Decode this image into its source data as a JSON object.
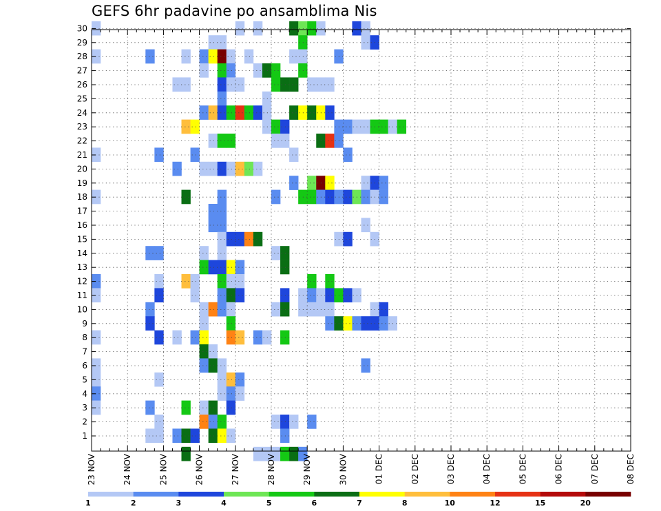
{
  "chart_data": {
    "type": "heatmap",
    "title": "GEFS 6hr padavine po ansamblima Nis",
    "x_tick_labels": [
      "23 NOV",
      "24 NOV",
      "25 NOV",
      "26 NOV",
      "27 NOV",
      "28 NOV",
      "29 NOV",
      "30 NOV",
      "01 DEC",
      "02 DEC",
      "03 DEC",
      "04 DEC",
      "05 DEC",
      "06 DEC",
      "07 DEC",
      "08 DEC"
    ],
    "y_tick_labels": [
      "1",
      "2",
      "3",
      "4",
      "5",
      "6",
      "7",
      "8",
      "9",
      "10",
      "11",
      "12",
      "13",
      "14",
      "15",
      "16",
      "17",
      "18",
      "19",
      "20",
      "21",
      "22",
      "23",
      "24",
      "25",
      "26",
      "27",
      "28",
      "29",
      "30"
    ],
    "steps_per_day": 4,
    "grid": true,
    "legend_position": "bottom",
    "colorbar": {
      "labels": [
        "1",
        "2",
        "3",
        "4",
        "5",
        "6",
        "7",
        "8",
        "10",
        "12",
        "15",
        "20"
      ],
      "colors": [
        "#b4c8f5",
        "#5a8cf0",
        "#1e46dc",
        "#6ee655",
        "#14c814",
        "#0a6e14",
        "#ffff00",
        "#ffbe3c",
        "#ff8214",
        "#e63214",
        "#b40a0a",
        "#780000"
      ]
    },
    "cells": [
      [
        30,
        0,
        0
      ],
      [
        30,
        16,
        0
      ],
      [
        30,
        18,
        0
      ],
      [
        30,
        22,
        5
      ],
      [
        30,
        23,
        3
      ],
      [
        30,
        24,
        4
      ],
      [
        30,
        25,
        0
      ],
      [
        30,
        29,
        2
      ],
      [
        30,
        30,
        0
      ],
      [
        29,
        13,
        0
      ],
      [
        29,
        14,
        0
      ],
      [
        29,
        23,
        4
      ],
      [
        29,
        30,
        0
      ],
      [
        29,
        31,
        2
      ],
      [
        28,
        0,
        0
      ],
      [
        28,
        6,
        1
      ],
      [
        28,
        10,
        0
      ],
      [
        28,
        12,
        1
      ],
      [
        28,
        13,
        6
      ],
      [
        28,
        14,
        11
      ],
      [
        28,
        15,
        0
      ],
      [
        28,
        17,
        0
      ],
      [
        28,
        22,
        0
      ],
      [
        28,
        23,
        0
      ],
      [
        28,
        27,
        1
      ],
      [
        27,
        12,
        0
      ],
      [
        27,
        14,
        4
      ],
      [
        27,
        15,
        1
      ],
      [
        27,
        18,
        0
      ],
      [
        27,
        19,
        5
      ],
      [
        27,
        20,
        4
      ],
      [
        27,
        23,
        4
      ],
      [
        26,
        9,
        0
      ],
      [
        26,
        10,
        0
      ],
      [
        26,
        14,
        2
      ],
      [
        26,
        15,
        0
      ],
      [
        26,
        16,
        0
      ],
      [
        26,
        20,
        4
      ],
      [
        26,
        21,
        5
      ],
      [
        26,
        22,
        5
      ],
      [
        26,
        24,
        0
      ],
      [
        26,
        25,
        0
      ],
      [
        26,
        26,
        0
      ],
      [
        25,
        14,
        1
      ],
      [
        25,
        19,
        0
      ],
      [
        24,
        12,
        1
      ],
      [
        24,
        13,
        7
      ],
      [
        24,
        14,
        2
      ],
      [
        24,
        15,
        4
      ],
      [
        24,
        16,
        9
      ],
      [
        24,
        17,
        4
      ],
      [
        24,
        18,
        2
      ],
      [
        24,
        19,
        0
      ],
      [
        24,
        22,
        5
      ],
      [
        24,
        23,
        6
      ],
      [
        24,
        24,
        5
      ],
      [
        24,
        25,
        6
      ],
      [
        24,
        26,
        2
      ],
      [
        23,
        10,
        7
      ],
      [
        23,
        11,
        6
      ],
      [
        23,
        19,
        0
      ],
      [
        23,
        20,
        4
      ],
      [
        23,
        21,
        2
      ],
      [
        23,
        27,
        1
      ],
      [
        23,
        28,
        1
      ],
      [
        23,
        29,
        0
      ],
      [
        23,
        30,
        0
      ],
      [
        23,
        31,
        4
      ],
      [
        23,
        32,
        4
      ],
      [
        23,
        33,
        0
      ],
      [
        23,
        34,
        4
      ],
      [
        22,
        13,
        0
      ],
      [
        22,
        14,
        4
      ],
      [
        22,
        15,
        4
      ],
      [
        22,
        20,
        0
      ],
      [
        22,
        21,
        0
      ],
      [
        22,
        25,
        5
      ],
      [
        22,
        26,
        9
      ],
      [
        22,
        27,
        1
      ],
      [
        21,
        0,
        0
      ],
      [
        21,
        7,
        1
      ],
      [
        21,
        11,
        1
      ],
      [
        21,
        22,
        0
      ],
      [
        21,
        28,
        1
      ],
      [
        20,
        9,
        1
      ],
      [
        20,
        12,
        0
      ],
      [
        20,
        13,
        0
      ],
      [
        20,
        14,
        2
      ],
      [
        20,
        15,
        0
      ],
      [
        20,
        16,
        7
      ],
      [
        20,
        17,
        3
      ],
      [
        20,
        18,
        0
      ],
      [
        19,
        22,
        1
      ],
      [
        19,
        24,
        3
      ],
      [
        19,
        25,
        11
      ],
      [
        19,
        26,
        6
      ],
      [
        19,
        30,
        0
      ],
      [
        19,
        31,
        2
      ],
      [
        19,
        32,
        1
      ],
      [
        18,
        0,
        0
      ],
      [
        18,
        10,
        5
      ],
      [
        18,
        14,
        1
      ],
      [
        18,
        20,
        1
      ],
      [
        18,
        23,
        4
      ],
      [
        18,
        24,
        4
      ],
      [
        18,
        25,
        1
      ],
      [
        18,
        26,
        2
      ],
      [
        18,
        27,
        1
      ],
      [
        18,
        28,
        2
      ],
      [
        18,
        29,
        3
      ],
      [
        18,
        30,
        1
      ],
      [
        18,
        31,
        0
      ],
      [
        18,
        32,
        1
      ],
      [
        17,
        13,
        1
      ],
      [
        17,
        14,
        1
      ],
      [
        16,
        13,
        1
      ],
      [
        16,
        14,
        1
      ],
      [
        16,
        30,
        0
      ],
      [
        15,
        14,
        0
      ],
      [
        15,
        15,
        2
      ],
      [
        15,
        16,
        2
      ],
      [
        15,
        17,
        8
      ],
      [
        15,
        18,
        5
      ],
      [
        15,
        27,
        0
      ],
      [
        15,
        28,
        2
      ],
      [
        15,
        31,
        0
      ],
      [
        14,
        6,
        1
      ],
      [
        14,
        7,
        1
      ],
      [
        14,
        12,
        0
      ],
      [
        14,
        14,
        0
      ],
      [
        14,
        20,
        0
      ],
      [
        14,
        21,
        5
      ],
      [
        13,
        12,
        4
      ],
      [
        13,
        13,
        2
      ],
      [
        13,
        14,
        2
      ],
      [
        13,
        15,
        6
      ],
      [
        13,
        16,
        1
      ],
      [
        13,
        21,
        5
      ],
      [
        12,
        0,
        1
      ],
      [
        12,
        7,
        0
      ],
      [
        12,
        10,
        7
      ],
      [
        12,
        11,
        0
      ],
      [
        12,
        14,
        4
      ],
      [
        12,
        15,
        0
      ],
      [
        12,
        16,
        0
      ],
      [
        12,
        24,
        4
      ],
      [
        12,
        26,
        4
      ],
      [
        11,
        0,
        0
      ],
      [
        11,
        7,
        2
      ],
      [
        11,
        11,
        0
      ],
      [
        11,
        14,
        1
      ],
      [
        11,
        15,
        5
      ],
      [
        11,
        16,
        2
      ],
      [
        11,
        21,
        2
      ],
      [
        11,
        23,
        0
      ],
      [
        11,
        24,
        1
      ],
      [
        11,
        25,
        0
      ],
      [
        11,
        26,
        2
      ],
      [
        11,
        27,
        4
      ],
      [
        11,
        28,
        2
      ],
      [
        11,
        29,
        0
      ],
      [
        10,
        6,
        1
      ],
      [
        10,
        12,
        0
      ],
      [
        10,
        13,
        8
      ],
      [
        10,
        14,
        1
      ],
      [
        10,
        15,
        0
      ],
      [
        10,
        20,
        0
      ],
      [
        10,
        21,
        5
      ],
      [
        10,
        23,
        0
      ],
      [
        10,
        24,
        0
      ],
      [
        10,
        25,
        0
      ],
      [
        10,
        26,
        0
      ],
      [
        10,
        31,
        0
      ],
      [
        10,
        32,
        2
      ],
      [
        9,
        6,
        2
      ],
      [
        9,
        12,
        0
      ],
      [
        9,
        15,
        4
      ],
      [
        9,
        26,
        1
      ],
      [
        9,
        27,
        5
      ],
      [
        9,
        28,
        6
      ],
      [
        9,
        29,
        1
      ],
      [
        9,
        30,
        2
      ],
      [
        9,
        31,
        2
      ],
      [
        9,
        32,
        1
      ],
      [
        9,
        33,
        0
      ],
      [
        8,
        0,
        0
      ],
      [
        8,
        7,
        2
      ],
      [
        8,
        9,
        0
      ],
      [
        8,
        11,
        1
      ],
      [
        8,
        12,
        6
      ],
      [
        8,
        15,
        8
      ],
      [
        8,
        16,
        7
      ],
      [
        8,
        18,
        1
      ],
      [
        8,
        19,
        0
      ],
      [
        8,
        21,
        4
      ],
      [
        7,
        12,
        5
      ],
      [
        7,
        13,
        0
      ],
      [
        6,
        0,
        0
      ],
      [
        6,
        12,
        1
      ],
      [
        6,
        13,
        5
      ],
      [
        6,
        14,
        0
      ],
      [
        6,
        30,
        1
      ],
      [
        5,
        0,
        0
      ],
      [
        5,
        7,
        0
      ],
      [
        5,
        14,
        0
      ],
      [
        5,
        15,
        7
      ],
      [
        5,
        16,
        1
      ],
      [
        4,
        0,
        1
      ],
      [
        4,
        14,
        0
      ],
      [
        4,
        15,
        1
      ],
      [
        4,
        16,
        0
      ],
      [
        3,
        0,
        0
      ],
      [
        3,
        6,
        1
      ],
      [
        3,
        10,
        4
      ],
      [
        3,
        12,
        0
      ],
      [
        3,
        13,
        5
      ],
      [
        3,
        15,
        2
      ],
      [
        2,
        7,
        0
      ],
      [
        2,
        12,
        8
      ],
      [
        2,
        13,
        1
      ],
      [
        2,
        14,
        4
      ],
      [
        2,
        20,
        0
      ],
      [
        2,
        21,
        2
      ],
      [
        2,
        22,
        0
      ],
      [
        2,
        24,
        1
      ],
      [
        1,
        6,
        0
      ],
      [
        1,
        7,
        0
      ],
      [
        1,
        9,
        1
      ],
      [
        1,
        10,
        5
      ],
      [
        1,
        11,
        2
      ],
      [
        1,
        13,
        5
      ],
      [
        1,
        14,
        6
      ],
      [
        1,
        15,
        0
      ],
      [
        1,
        21,
        1
      ],
      [
        0,
        10,
        5
      ],
      [
        0,
        18,
        0
      ],
      [
        0,
        19,
        0
      ],
      [
        0,
        20,
        0
      ],
      [
        0,
        21,
        4
      ],
      [
        0,
        22,
        5
      ],
      [
        0,
        23,
        1
      ]
    ]
  }
}
